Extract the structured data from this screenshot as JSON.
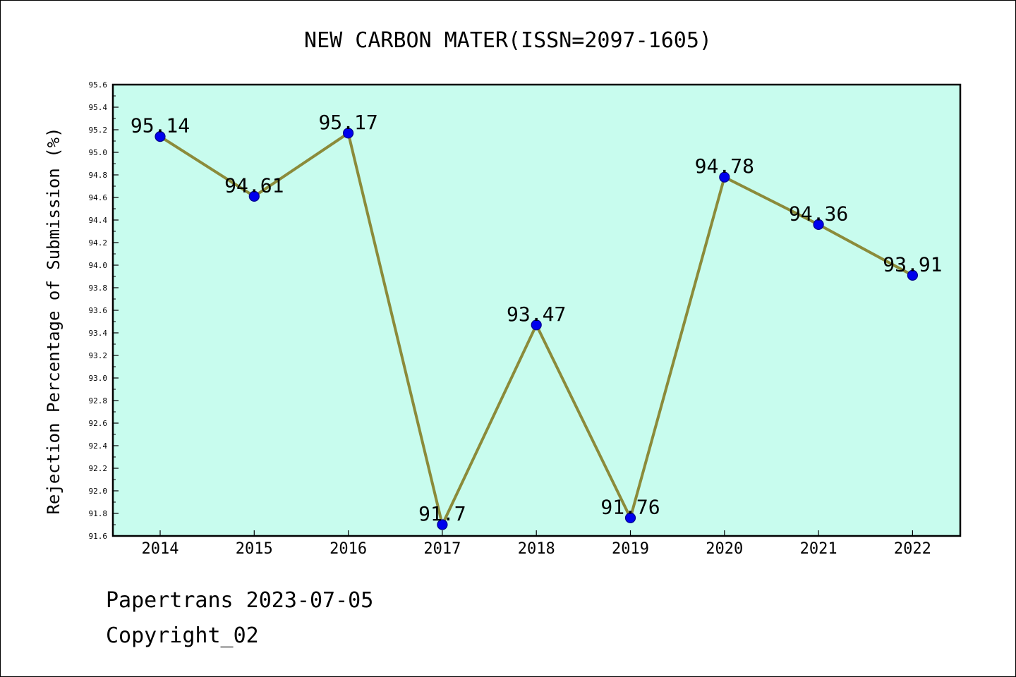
{
  "chart_data": {
    "type": "line",
    "title": "NEW CARBON MATER(ISSN=2097-1605)",
    "xlabel": "",
    "ylabel": "Rejection Percentage of Submission (%)",
    "categories": [
      "2014",
      "2015",
      "2016",
      "2017",
      "2018",
      "2019",
      "2020",
      "2021",
      "2022"
    ],
    "series": [
      {
        "values": [
          95.14,
          94.61,
          95.17,
          91.7,
          93.47,
          91.76,
          94.78,
          94.36,
          93.91
        ],
        "data_labels": [
          "95.14",
          "94.61",
          "95.17",
          "91.7",
          "93.47",
          "91.76",
          "94.78",
          "94.36",
          "93.91"
        ]
      }
    ],
    "ylim": [
      91.6,
      95.6
    ],
    "yticks": [
      "91.6",
      "91.8",
      "92.0",
      "92.2",
      "92.4",
      "92.6",
      "92.8",
      "93.0",
      "93.2",
      "93.4",
      "93.6",
      "93.8",
      "94.0",
      "94.2",
      "94.4",
      "94.6",
      "94.8",
      "95.0",
      "95.2",
      "95.4",
      "95.6"
    ],
    "grid": false,
    "legend": "none",
    "colors": {
      "plot_background": "#c8fcee",
      "line": "#8b8b3a",
      "marker_fill": "#0000ee",
      "marker_edge": "#00008b"
    }
  },
  "footer": {
    "line1": "Papertrans 2023-07-05",
    "line2": "Copyright_02"
  }
}
